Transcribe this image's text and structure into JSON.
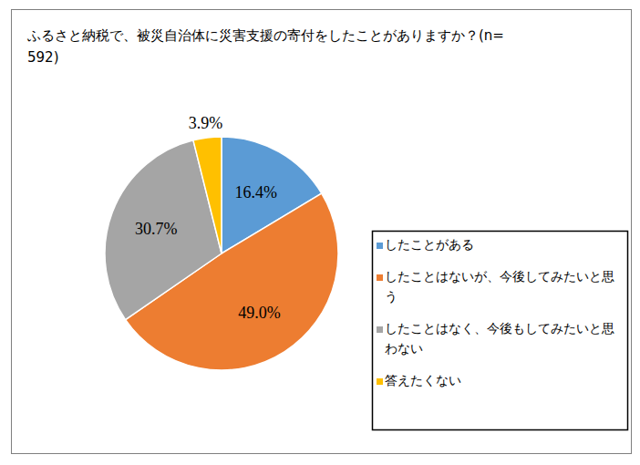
{
  "chart_data": {
    "type": "pie",
    "title": "ふるさと納税で、被災自治体に災害支援の寄付をしたことがありますか？(n=592)",
    "categories": [
      "したことがある",
      "したことはないが、今後してみたいと思う",
      "したことはなく、今後もしてみたいと思わない",
      "答えたくない"
    ],
    "values": [
      16.4,
      49.0,
      30.7,
      3.9
    ],
    "value_labels": [
      "16.4%",
      "49.0%",
      "30.7%",
      "3.9%"
    ],
    "colors": [
      "#5b9bd5",
      "#ed7d31",
      "#a5a5a5",
      "#ffc000"
    ],
    "data_labels": true,
    "legend": "right"
  }
}
